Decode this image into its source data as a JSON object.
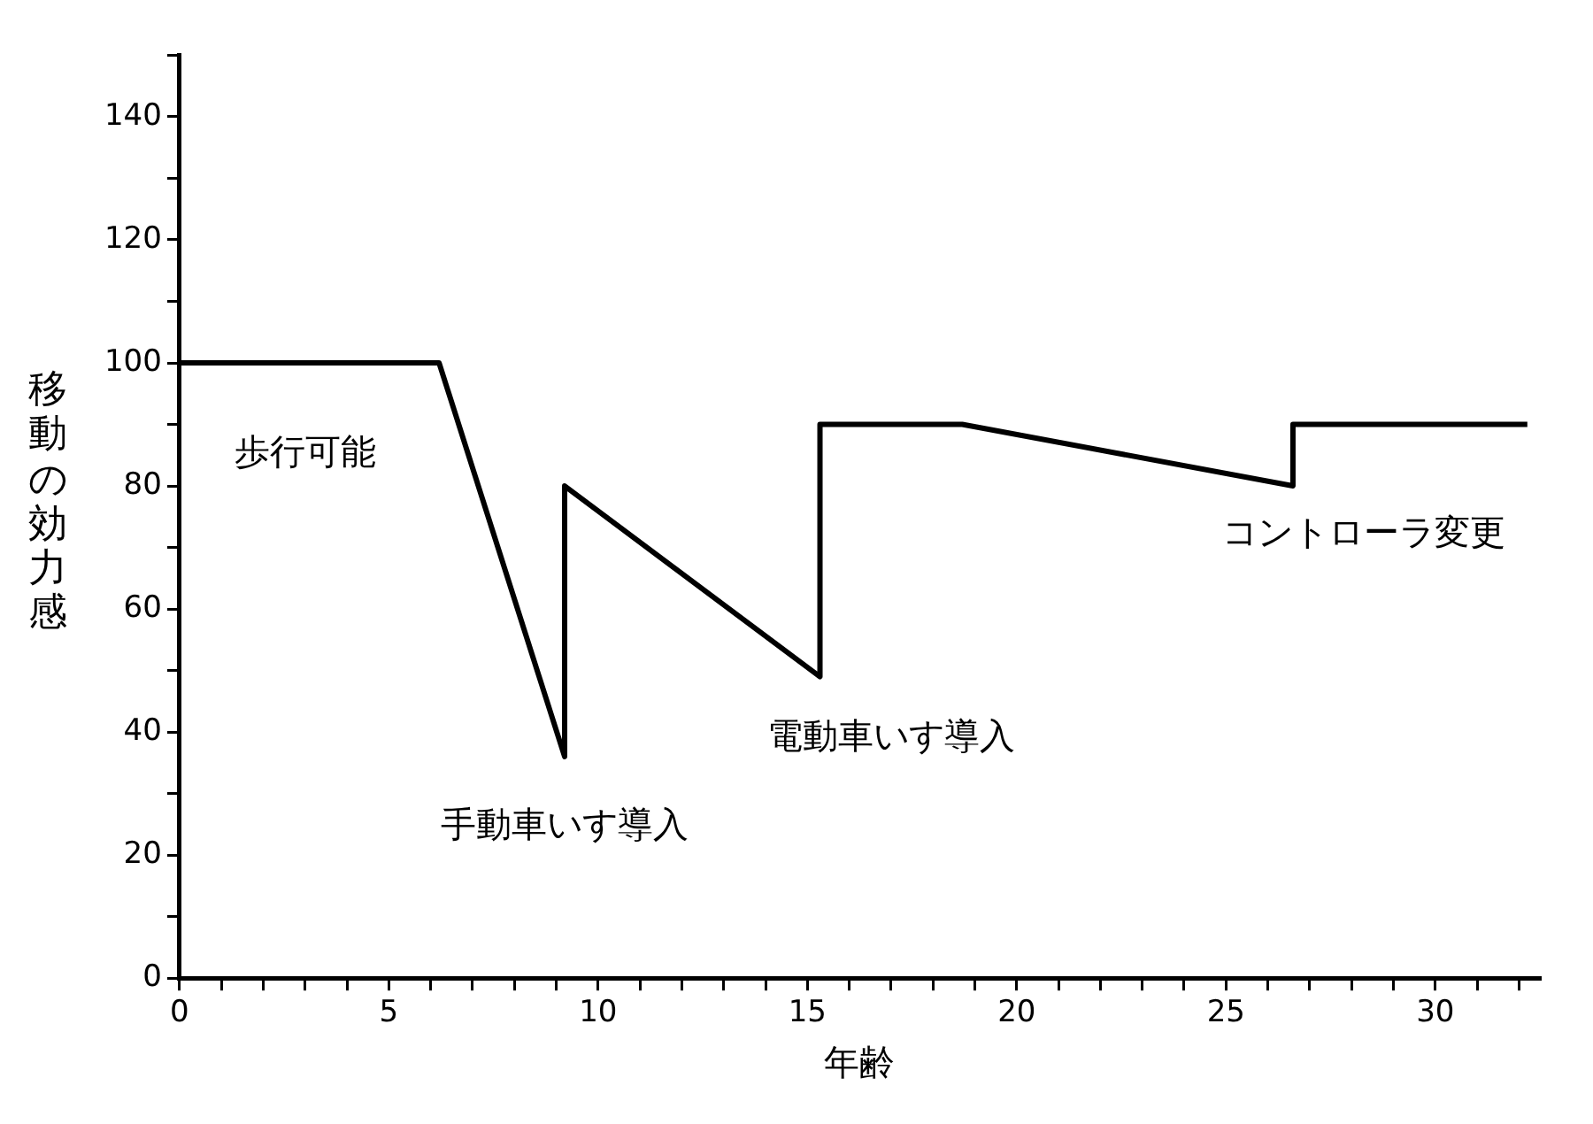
{
  "chart_data": {
    "type": "line",
    "xlabel": "年齢",
    "ylabel": "移動の効力感",
    "x": [
      0,
      6.2,
      9.2,
      9.2,
      15.3,
      15.3,
      18.7,
      26.6,
      26.6,
      32.2
    ],
    "series": [
      {
        "color": "#000000",
        "values": [
          100,
          100,
          36,
          80,
          49,
          90,
          90,
          80,
          90,
          90
        ]
      }
    ],
    "xlim": [
      0,
      32.5
    ],
    "xticks": [
      0,
      {
        "value": 1,
        "label": null
      },
      {
        "value": 2,
        "label": null
      },
      {
        "value": 3,
        "label": null
      },
      {
        "value": 4,
        "label": null
      },
      5,
      {
        "value": 6,
        "label": null
      },
      {
        "value": 7,
        "label": null
      },
      {
        "value": 8,
        "label": null
      },
      {
        "value": 9,
        "label": null
      },
      10,
      {
        "value": 11,
        "label": null
      },
      {
        "value": 12,
        "label": null
      },
      {
        "value": 13,
        "label": null
      },
      {
        "value": 14,
        "label": null
      },
      15,
      {
        "value": 16,
        "label": null
      },
      {
        "value": 17,
        "label": null
      },
      {
        "value": 18,
        "label": null
      },
      {
        "value": 19,
        "label": null
      },
      20,
      {
        "value": 21,
        "label": null
      },
      {
        "value": 22,
        "label": null
      },
      {
        "value": 23,
        "label": null
      },
      {
        "value": 24,
        "label": null
      },
      25,
      {
        "value": 26,
        "label": null
      },
      {
        "value": 27,
        "label": null
      },
      {
        "value": 28,
        "label": null
      },
      {
        "value": 29,
        "label": null
      },
      30,
      {
        "value": 31,
        "label": null
      },
      {
        "value": 32,
        "label": null
      }
    ],
    "ylim": [
      0,
      150
    ],
    "yticks": [
      0,
      {
        "value": 10,
        "label": null
      },
      20,
      {
        "value": 30,
        "label": null
      },
      40,
      {
        "value": 50,
        "label": null
      },
      60,
      {
        "value": 70,
        "label": null
      },
      80,
      {
        "value": 90,
        "label": null
      },
      100,
      {
        "value": 110,
        "label": null
      },
      120,
      {
        "value": 130,
        "label": null
      },
      140,
      {
        "value": 150,
        "label": null
      }
    ],
    "grid": false,
    "legend": false,
    "marker": "none",
    "line_style": "solid",
    "annotations": [
      {
        "text": "歩行可能",
        "x": 3,
        "y": 100
      },
      {
        "text": "手動車いす導入",
        "x": 9.2,
        "y": 36
      },
      {
        "text": "電動車いす導入",
        "x": 15.3,
        "y": 49
      },
      {
        "text": "コントローラ変更",
        "x": 26.6,
        "y": 80
      }
    ]
  }
}
